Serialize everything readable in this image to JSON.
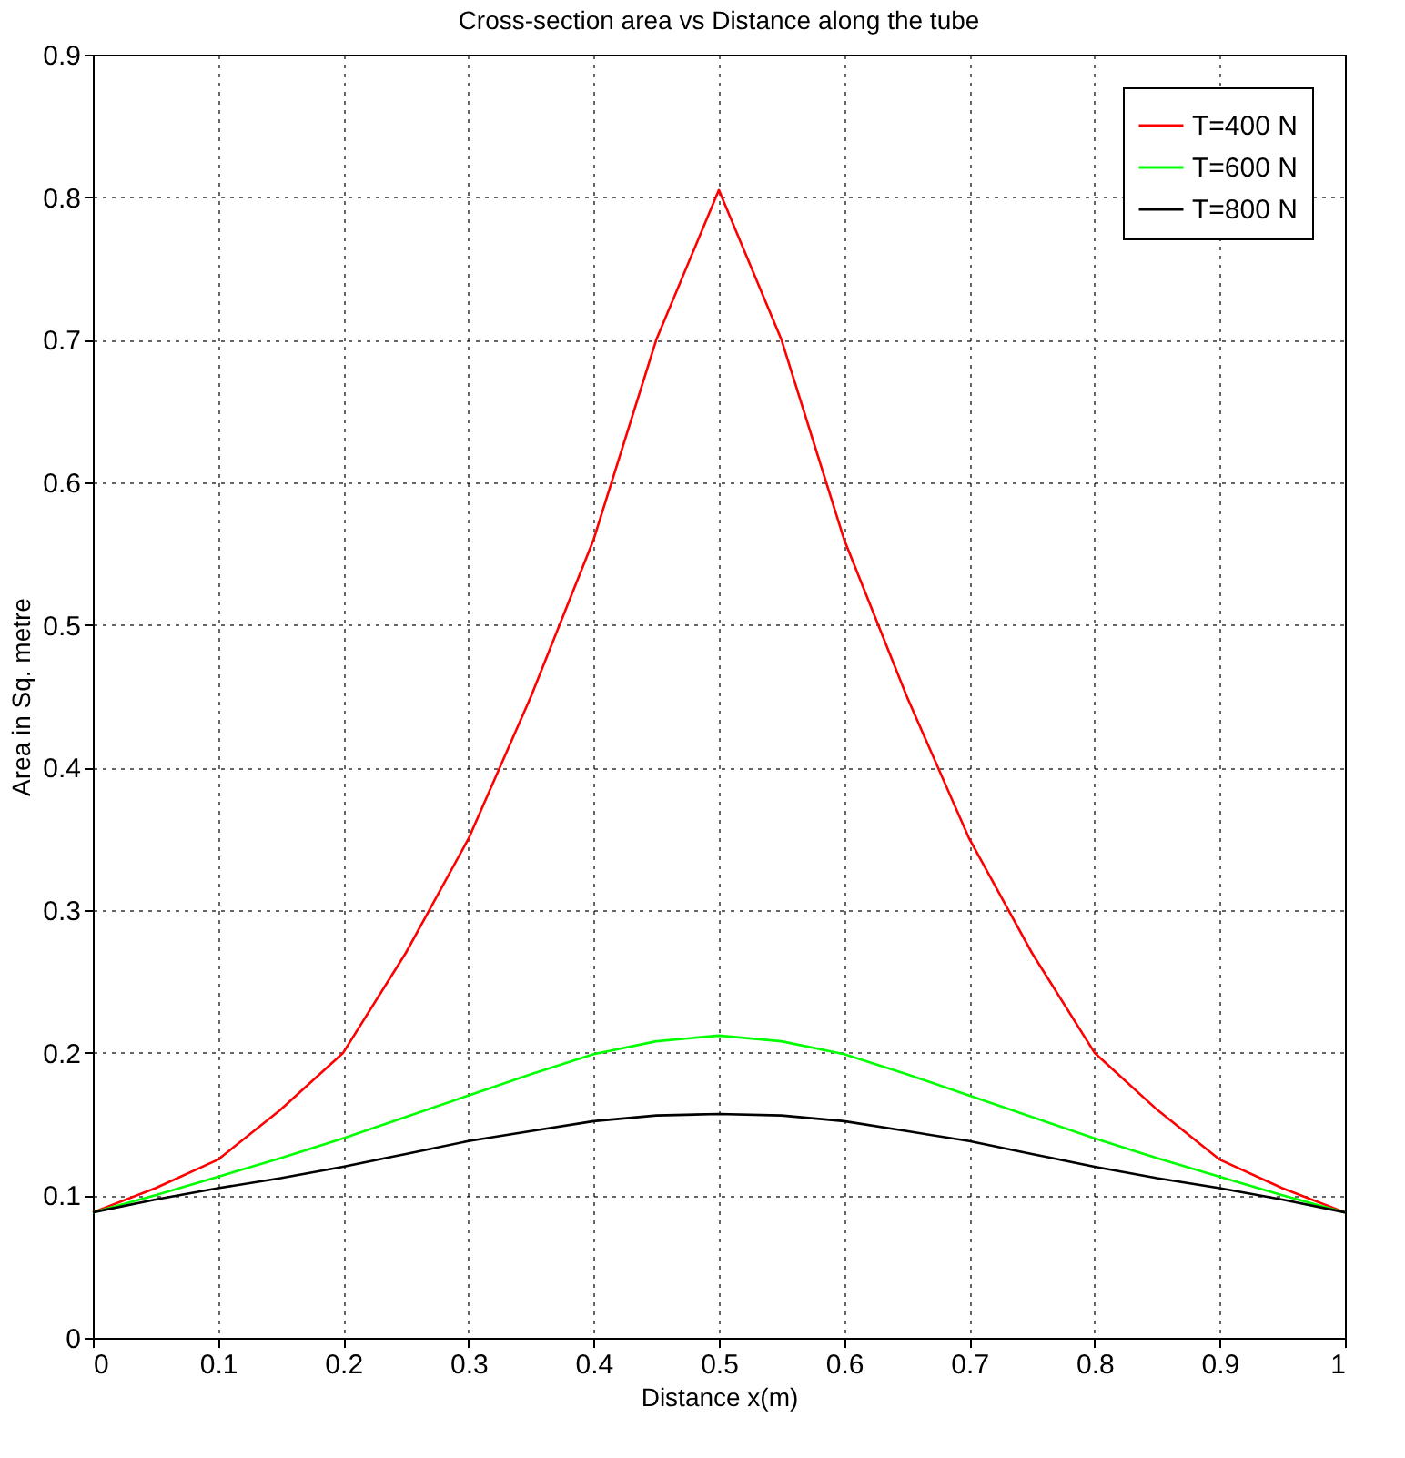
{
  "chart_data": {
    "type": "line",
    "title": "Cross-section area vs Distance along the tube",
    "xlabel": "Distance x(m)",
    "ylabel": "Area in Sq. metre",
    "x": [
      0,
      0.05,
      0.1,
      0.15,
      0.2,
      0.25,
      0.3,
      0.35,
      0.4,
      0.45,
      0.5,
      0.55,
      0.6,
      0.65,
      0.7,
      0.75,
      0.8,
      0.85,
      0.9,
      0.95,
      1
    ],
    "series": [
      {
        "name": "T=400 N",
        "color": "#ff0000",
        "values": [
          0.088,
          0.105,
          0.125,
          0.16,
          0.2,
          0.27,
          0.35,
          0.45,
          0.56,
          0.7,
          0.805,
          0.7,
          0.56,
          0.45,
          0.35,
          0.27,
          0.2,
          0.16,
          0.125,
          0.105,
          0.088
        ]
      },
      {
        "name": "T=600 N",
        "color": "#00ff00",
        "values": [
          0.088,
          0.1,
          0.113,
          0.126,
          0.14,
          0.155,
          0.17,
          0.185,
          0.199,
          0.208,
          0.212,
          0.208,
          0.199,
          0.185,
          0.17,
          0.155,
          0.14,
          0.126,
          0.113,
          0.1,
          0.088
        ]
      },
      {
        "name": "T=800 N",
        "color": "#000000",
        "values": [
          0.088,
          0.097,
          0.105,
          0.112,
          0.12,
          0.129,
          0.138,
          0.145,
          0.152,
          0.156,
          0.157,
          0.156,
          0.152,
          0.145,
          0.138,
          0.129,
          0.12,
          0.112,
          0.105,
          0.097,
          0.088
        ]
      }
    ],
    "xlim": [
      0,
      1
    ],
    "xticks": [
      0,
      0.1,
      0.2,
      0.3,
      0.4,
      0.5,
      0.6,
      0.7,
      0.8,
      0.9,
      1
    ],
    "ylim": [
      0,
      0.9
    ],
    "yticks": [
      0,
      0.1,
      0.2,
      0.3,
      0.4,
      0.5,
      0.6,
      0.7,
      0.8,
      0.9
    ],
    "grid": true,
    "legend": "top right",
    "line_style": "solid",
    "marker": "none"
  }
}
